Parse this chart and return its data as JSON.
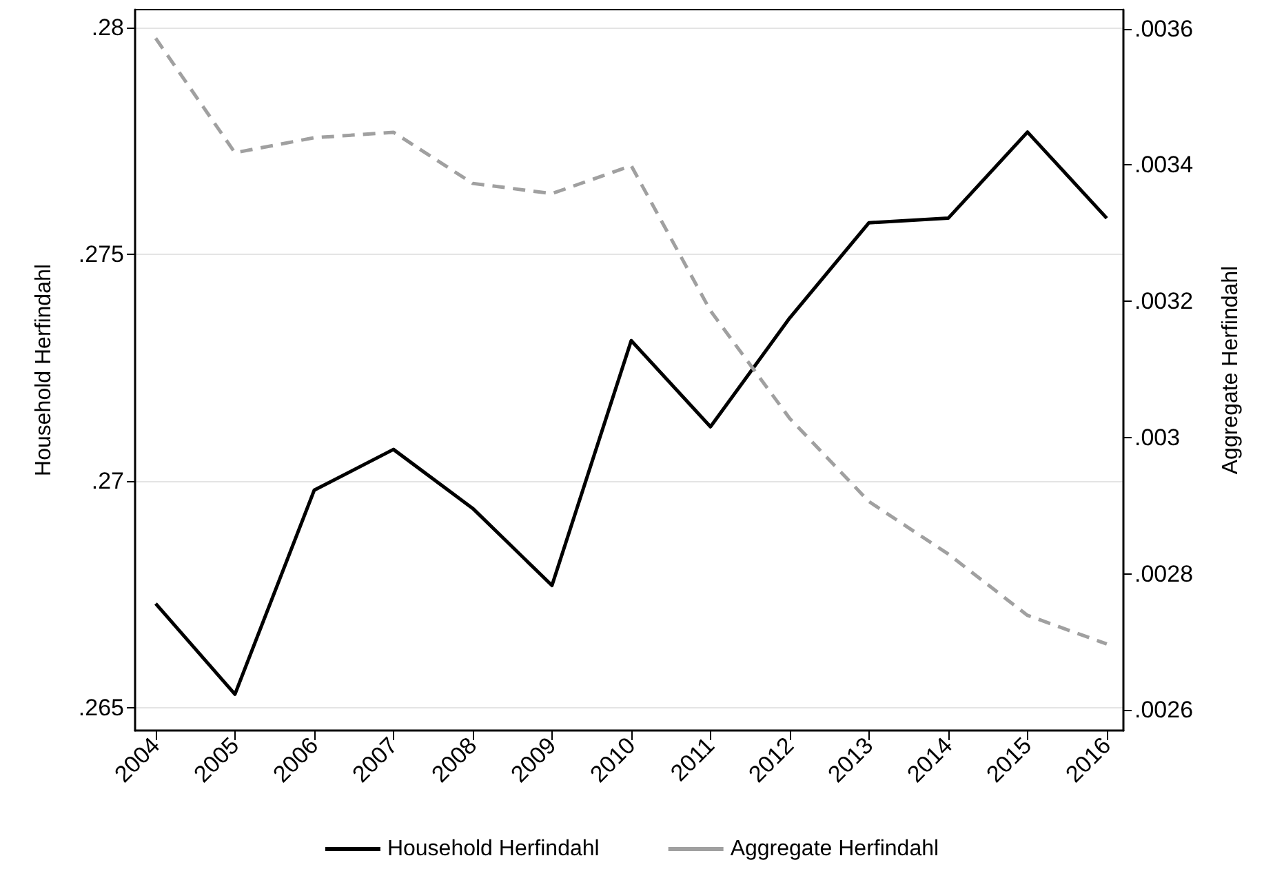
{
  "chart_data": {
    "type": "line",
    "ylabel": "Household Herfindahl",
    "y2label": "Aggregate Herfindahl",
    "x": [
      2004,
      2005,
      2006,
      2007,
      2008,
      2009,
      2010,
      2011,
      2012,
      2013,
      2014,
      2015,
      2016
    ],
    "xlim": [
      2003.74,
      2016.21
    ],
    "xticks": [
      2004,
      2005,
      2006,
      2007,
      2008,
      2009,
      2010,
      2011,
      2012,
      2013,
      2014,
      2015,
      2016
    ],
    "ylim": [
      0.2645,
      0.2804
    ],
    "yticks": [
      {
        "value": 0.265,
        "label": ".265"
      },
      {
        "value": 0.27,
        "label": ".27"
      },
      {
        "value": 0.275,
        "label": ".275"
      },
      {
        "value": 0.28,
        "label": ".28"
      }
    ],
    "y2lim": [
      0.00257,
      0.003628
    ],
    "y2ticks": [
      {
        "value": 0.0026,
        "label": ".0026"
      },
      {
        "value": 0.0028,
        "label": ".0028"
      },
      {
        "value": 0.003,
        "label": ".003"
      },
      {
        "value": 0.0032,
        "label": ".0032"
      },
      {
        "value": 0.0034,
        "label": ".0034"
      },
      {
        "value": 0.0036,
        "label": ".0036"
      }
    ],
    "series": [
      {
        "name": "Household Herfindahl",
        "color": "#000000",
        "line_style": "solid",
        "values": [
          0.2673,
          0.2653,
          0.2698,
          0.2707,
          0.2694,
          0.2677,
          0.2731,
          0.2712,
          0.2736,
          0.2757,
          0.2758,
          0.2777,
          0.2758
        ]
      },
      {
        "name": "Aggregate Herfindahl",
        "color": "#a0a0a0",
        "line_style": "dashed",
        "axis": "y2",
        "values": [
          0.003586,
          0.003418,
          0.00344,
          0.003448,
          0.003373,
          0.003358,
          0.003399,
          0.003186,
          0.003028,
          0.002906,
          0.002829,
          0.002739,
          0.002697
        ]
      }
    ],
    "grid": "y",
    "legend": "bottom",
    "marker": "none"
  }
}
